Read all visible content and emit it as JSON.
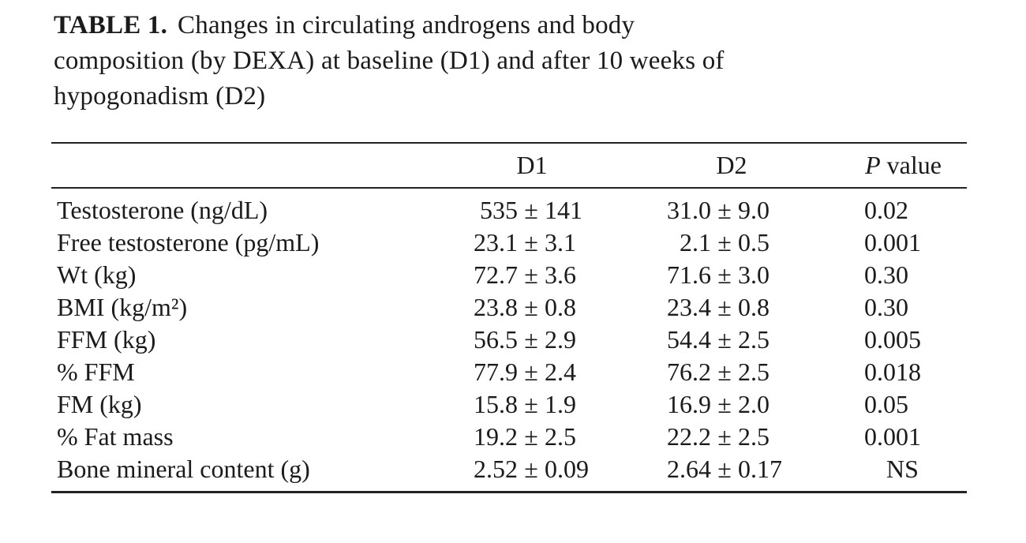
{
  "title": {
    "bold": "TABLE 1.",
    "line1_rest": "Changes in circulating androgens and body",
    "line2": "composition (by DEXA) at baseline (D1) and after 10 weeks of",
    "line3": "hypogonadism (D2)"
  },
  "table": {
    "headers": {
      "d1": "D1",
      "d2": "D2",
      "p_italic": "P",
      "p_rest": "value"
    },
    "rows": [
      {
        "label": "Testosterone (ng/dL)",
        "d1": "535 ± 141",
        "d2": "31.0 ± 9.0",
        "p": "0.02"
      },
      {
        "label": "Free testosterone (pg/mL)",
        "d1": "23.1 ± 3.1",
        "d2": "2.1 ± 0.5",
        "p": "0.001"
      },
      {
        "label": "Wt (kg)",
        "d1": "72.7 ± 3.6",
        "d2": "71.6 ± 3.0",
        "p": "0.30"
      },
      {
        "label": "BMI (kg/m²)",
        "d1": "23.8 ± 0.8",
        "d2": "23.4 ± 0.8",
        "p": "0.30"
      },
      {
        "label": "FFM (kg)",
        "d1": "56.5 ± 2.9",
        "d2": "54.4 ± 2.5",
        "p": "0.005"
      },
      {
        "label": "% FFM",
        "d1": "77.9 ± 2.4",
        "d2": "76.2 ± 2.5",
        "p": "0.018"
      },
      {
        "label": "FM (kg)",
        "d1": "15.8 ± 1.9",
        "d2": "16.9 ± 2.0",
        "p": "0.05"
      },
      {
        "label": "% Fat mass",
        "d1": "19.2 ± 2.5",
        "d2": "22.2 ± 2.5",
        "p": "0.001"
      },
      {
        "label": "Bone mineral content (g)",
        "d1": "2.52 ± 0.09",
        "d2": "2.64 ± 0.17",
        "p": "NS"
      }
    ]
  },
  "colors": {
    "text": "#1b1b1b",
    "rule": "#222222",
    "background": "#ffffff"
  }
}
